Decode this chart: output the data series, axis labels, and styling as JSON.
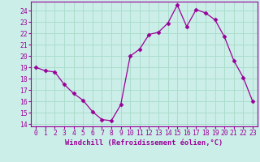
{
  "x": [
    0,
    1,
    2,
    3,
    4,
    5,
    6,
    7,
    8,
    9,
    10,
    11,
    12,
    13,
    14,
    15,
    16,
    17,
    18,
    19,
    20,
    21,
    22,
    23
  ],
  "y": [
    19,
    18.7,
    18.6,
    17.5,
    16.7,
    16.1,
    15.1,
    14.4,
    14.3,
    15.7,
    20.0,
    20.6,
    21.9,
    22.1,
    22.9,
    24.5,
    22.6,
    24.1,
    23.8,
    23.2,
    21.7,
    19.6,
    18.1,
    16.0
  ],
  "line_color": "#990099",
  "marker": "D",
  "marker_size": 2.5,
  "bg_color": "#cceee8",
  "grid_color": "#aaddcc",
  "xlabel": "Windchill (Refroidissement éolien,°C)",
  "xlabel_color": "#990099",
  "xlim": [
    -0.5,
    23.5
  ],
  "ylim": [
    13.8,
    24.8
  ],
  "yticks": [
    14,
    15,
    16,
    17,
    18,
    19,
    20,
    21,
    22,
    23,
    24
  ],
  "xticks": [
    0,
    1,
    2,
    3,
    4,
    5,
    6,
    7,
    8,
    9,
    10,
    11,
    12,
    13,
    14,
    15,
    16,
    17,
    18,
    19,
    20,
    21,
    22,
    23
  ],
  "tick_color": "#990099",
  "tick_label_color": "#990099",
  "spine_color": "#990099",
  "font_family": "monospace",
  "tick_fontsize": 5.8,
  "xlabel_fontsize": 6.2
}
